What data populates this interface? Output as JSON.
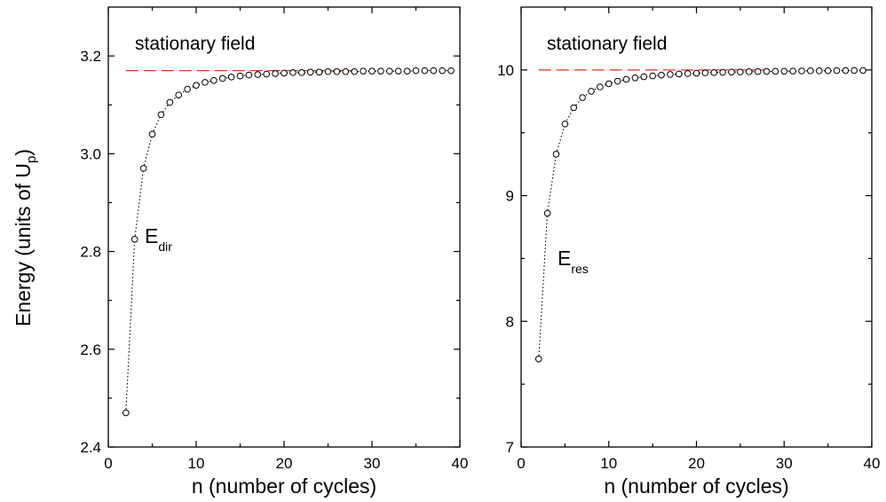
{
  "ylabel_main": "Energy (units of U",
  "ylabel_sub": "p",
  "ylabel_close": ")",
  "chart_data": [
    {
      "type": "scatter",
      "xlabel": "n (number of cycles)",
      "xlim": [
        0,
        40
      ],
      "ylim": [
        2.4,
        3.3
      ],
      "xticks": [
        0,
        10,
        20,
        30,
        40
      ],
      "yticks": [
        2.4,
        2.6,
        2.8,
        3.0,
        3.2
      ],
      "ytick_labels": [
        "2.4",
        "2.6",
        "2.8",
        "3.0",
        "3.2"
      ],
      "grid": false,
      "reference_line": {
        "label": "stationary field",
        "y": 3.17,
        "x_range": [
          2,
          28
        ],
        "color": "#e03020"
      },
      "series": [
        {
          "label_main": "E",
          "label_sub": "dir",
          "x": [
            2,
            3,
            4,
            5,
            6,
            7,
            8,
            9,
            10,
            11,
            12,
            13,
            14,
            15,
            16,
            17,
            18,
            19,
            20,
            21,
            22,
            23,
            24,
            25,
            26,
            27,
            28,
            29,
            30,
            31,
            32,
            33,
            34,
            35,
            36,
            37,
            38,
            39
          ],
          "y": [
            2.47,
            2.825,
            2.97,
            3.04,
            3.08,
            3.105,
            3.12,
            3.132,
            3.14,
            3.146,
            3.15,
            3.154,
            3.157,
            3.159,
            3.161,
            3.162,
            3.163,
            3.164,
            3.165,
            3.166,
            3.166,
            3.167,
            3.167,
            3.168,
            3.168,
            3.168,
            3.168,
            3.169,
            3.169,
            3.169,
            3.169,
            3.169,
            3.169,
            3.17,
            3.17,
            3.17,
            3.17,
            3.17
          ]
        }
      ]
    },
    {
      "type": "scatter",
      "xlabel": "n (number of cycles)",
      "xlim": [
        0,
        40
      ],
      "ylim": [
        7,
        10.5
      ],
      "xticks": [
        0,
        10,
        20,
        30,
        40
      ],
      "yticks": [
        7,
        8,
        9,
        10
      ],
      "ytick_labels": [
        "7",
        "8",
        "9",
        "10"
      ],
      "grid": false,
      "reference_line": {
        "label": "stationary field",
        "y": 10.0,
        "x_range": [
          2,
          28
        ],
        "color": "#e03020"
      },
      "series": [
        {
          "label_main": "E",
          "label_sub": "res",
          "x": [
            2,
            3,
            4,
            5,
            6,
            7,
            8,
            9,
            10,
            11,
            12,
            13,
            14,
            15,
            16,
            17,
            18,
            19,
            20,
            21,
            22,
            23,
            24,
            25,
            26,
            27,
            28,
            29,
            30,
            31,
            32,
            33,
            34,
            35,
            36,
            37,
            38,
            39
          ],
          "y": [
            7.7,
            8.86,
            9.33,
            9.57,
            9.7,
            9.78,
            9.83,
            9.865,
            9.89,
            9.91,
            9.925,
            9.937,
            9.946,
            9.953,
            9.959,
            9.964,
            9.968,
            9.971,
            9.974,
            9.977,
            9.979,
            9.981,
            9.983,
            9.984,
            9.986,
            9.987,
            9.988,
            9.989,
            9.99,
            9.991,
            9.992,
            9.993,
            9.993,
            9.994,
            9.995,
            9.995,
            9.996,
            9.996
          ]
        }
      ]
    }
  ]
}
